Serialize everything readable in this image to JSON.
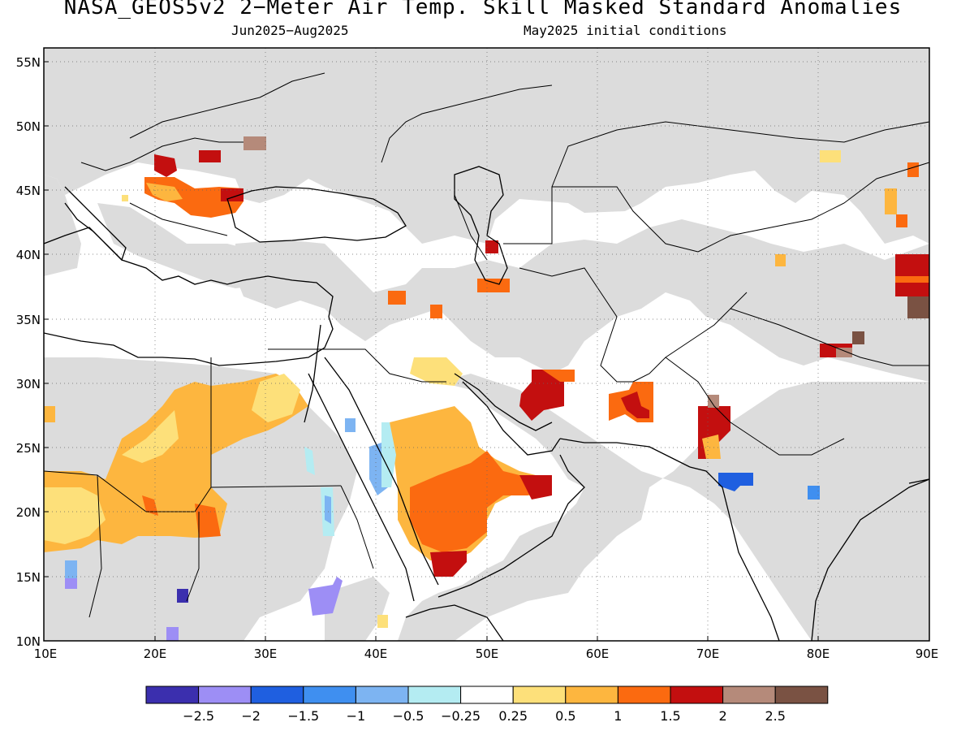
{
  "header": {
    "title": "NASA_GEOS5v2 2−Meter Air Temp. Skill Masked Standard Anomalies",
    "period": "Jun2025−Aug2025",
    "init": "May2025 initial conditions"
  },
  "map": {
    "lat_labels": [
      "55N",
      "50N",
      "45N",
      "40N",
      "35N",
      "30N",
      "25N",
      "20N",
      "15N",
      "10N"
    ],
    "lon_labels": [
      "10E",
      "20E",
      "30E",
      "40E",
      "50E",
      "60E",
      "70E",
      "80E",
      "90E"
    ],
    "colors": {
      "masked": "#dcdcdc",
      "coast": "#000000",
      "land_white": "#ffffff"
    }
  },
  "colorbar": {
    "colors": [
      "#3b2fae",
      "#9d8ef5",
      "#1f5fe0",
      "#3f8ff0",
      "#7db4f2",
      "#b4ecf2",
      "#ffffff",
      "#fde07a",
      "#fdb63f",
      "#fb6a10",
      "#c30f0f",
      "#b58a7a",
      "#7a5243"
    ],
    "labels": [
      "−2.5",
      "−2",
      "−1.5",
      "−1",
      "−0.5",
      "−0.25",
      "0.25",
      "0.5",
      "1",
      "1.5",
      "2",
      "2.5"
    ]
  }
}
